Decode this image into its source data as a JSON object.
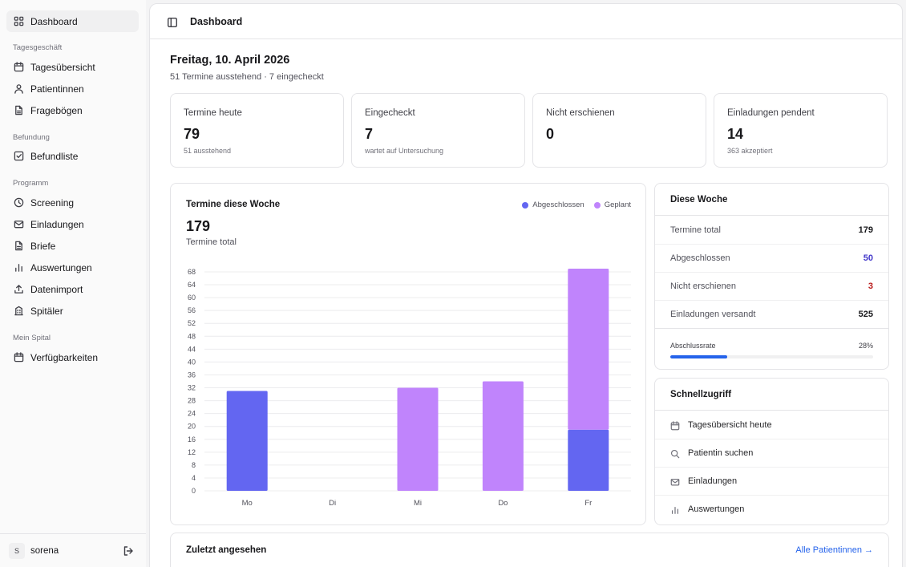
{
  "sidebar": {
    "dashboard": "Dashboard",
    "sections": [
      "Tagesgeschäft",
      "Befundung",
      "Programm",
      "Mein Spital"
    ],
    "items": [
      {
        "label": "Tagesübersicht",
        "icon": "calendar-icon"
      },
      {
        "label": "Patientinnen",
        "icon": "user-icon"
      },
      {
        "label": "Fragebögen",
        "icon": "document-icon"
      },
      {
        "label": "Befundliste",
        "icon": "checklist-icon"
      },
      {
        "label": "Screening",
        "icon": "clock-icon"
      },
      {
        "label": "Einladungen",
        "icon": "mail-icon"
      },
      {
        "label": "Briefe",
        "icon": "document-icon"
      },
      {
        "label": "Auswertungen",
        "icon": "bar-chart-icon"
      },
      {
        "label": "Datenimport",
        "icon": "upload-icon"
      },
      {
        "label": "Spitäler",
        "icon": "building-icon"
      },
      {
        "label": "Verfügbarkeiten",
        "icon": "calendar-icon"
      }
    ],
    "user": {
      "initial": "S",
      "name": "sorena"
    }
  },
  "header": {
    "title": "Dashboard"
  },
  "date": {
    "heading": "Freitag, 10. April 2026",
    "subtitle": "51 Termine ausstehend · 7 eingecheckt"
  },
  "kpis": [
    {
      "label": "Termine heute",
      "value": "79",
      "sub": "51 ausstehend"
    },
    {
      "label": "Eingecheckt",
      "value": "7",
      "sub": "wartet auf Untersuchung"
    },
    {
      "label": "Nicht erschienen",
      "value": "0",
      "sub": ""
    },
    {
      "label": "Einladungen pendent",
      "value": "14",
      "sub": "363 akzeptiert"
    }
  ],
  "chart": {
    "title": "Termine diese Woche",
    "total": "179",
    "total_label": "Termine total"
  },
  "chart_data": {
    "type": "bar",
    "stacked": true,
    "categories": [
      "Mo",
      "Di",
      "Mi",
      "Do",
      "Fr"
    ],
    "series": [
      {
        "name": "Abgeschlossen",
        "color": "#6366f1",
        "values": [
          31,
          0,
          0,
          0,
          19
        ]
      },
      {
        "name": "Geplant",
        "color": "#c084fc",
        "values": [
          0,
          0,
          32,
          34,
          50
        ]
      }
    ],
    "ylim": [
      0,
      68
    ],
    "yticks": [
      0,
      4,
      8,
      12,
      16,
      20,
      24,
      28,
      32,
      36,
      40,
      44,
      48,
      52,
      56,
      60,
      64,
      68
    ],
    "grid": true,
    "legend": "top-right",
    "xlabel": "",
    "ylabel": ""
  },
  "week": {
    "title": "Diese Woche",
    "rows": [
      {
        "label": "Termine total",
        "value": "179",
        "color": "#18181b"
      },
      {
        "label": "Abgeschlossen",
        "value": "50",
        "color": "#4338ca"
      },
      {
        "label": "Nicht erschienen",
        "value": "3",
        "color": "#b91c1c"
      },
      {
        "label": "Einladungen versandt",
        "value": "525",
        "color": "#18181b"
      }
    ],
    "rate_label": "Abschlussrate",
    "rate_value": "28%",
    "rate_fraction": 0.28
  },
  "quick": {
    "title": "Schnellzugriff",
    "items": [
      {
        "label": "Tagesübersicht heute",
        "icon": "calendar-icon"
      },
      {
        "label": "Patientin suchen",
        "icon": "search-icon"
      },
      {
        "label": "Einladungen",
        "icon": "mail-icon"
      },
      {
        "label": "Auswertungen",
        "icon": "bar-chart-icon"
      }
    ]
  },
  "recent": {
    "title": "Zuletzt angesehen",
    "link": "Alle Patientinnen →"
  }
}
